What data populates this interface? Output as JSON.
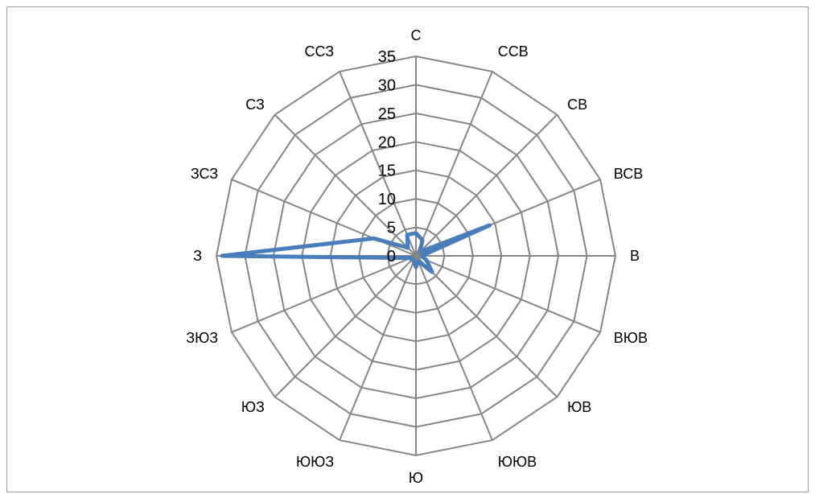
{
  "chart_data": {
    "type": "radar",
    "categories": [
      "С",
      "ССВ",
      "СВ",
      "ВСВ",
      "В",
      "ВЮВ",
      "ЮВ",
      "ЮЮВ",
      "Ю",
      "ЮЮЗ",
      "ЮЗ",
      "ЗЮЗ",
      "З",
      "ЗСЗ",
      "СЗ",
      "ССЗ"
    ],
    "series": [
      {
        "values": [
          4,
          3,
          1,
          14,
          1,
          2,
          4,
          1,
          2,
          1,
          1,
          1,
          34,
          8,
          2,
          4
        ]
      }
    ],
    "rlim": [
      0,
      35
    ],
    "ticks": [
      0,
      5,
      10,
      15,
      20,
      25,
      30,
      35
    ],
    "tick_labels": [
      "0",
      "5",
      "10",
      "15",
      "20",
      "25",
      "30",
      "35"
    ],
    "colors": {
      "series": "#4A7EBB",
      "grid": "#868686",
      "frame": "#9A9A9A"
    }
  }
}
